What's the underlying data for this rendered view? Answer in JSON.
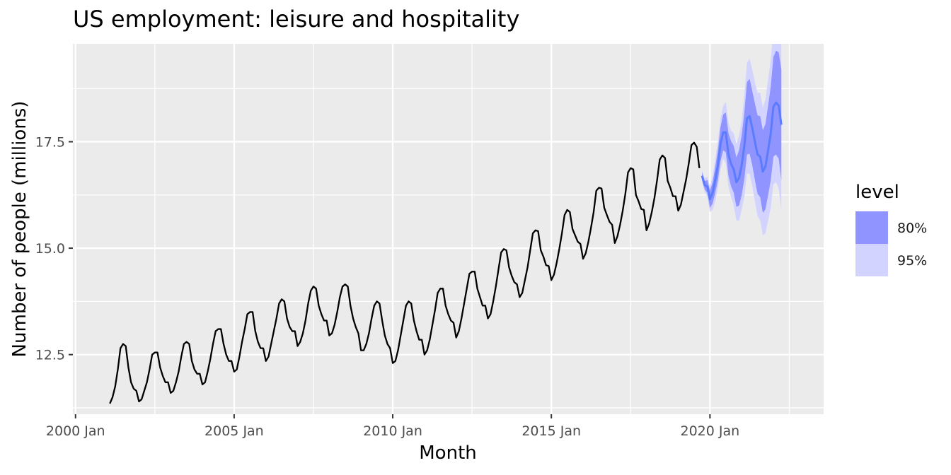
{
  "chart_data": {
    "type": "line",
    "title": "US employment: leisure and hospitality",
    "xlabel": "Month",
    "ylabel": "Number of people (millions)",
    "x_ticks": [
      "2000 Jan",
      "2005 Jan",
      "2010 Jan",
      "2015 Jan",
      "2020 Jan"
    ],
    "y_ticks": [
      "12.5",
      "15.0",
      "17.5"
    ],
    "xlim": [
      "1999-12",
      "2023-08"
    ],
    "ylim": [
      11.1,
      19.8
    ],
    "grid": true,
    "legend": {
      "title": "level",
      "position": "right",
      "entries": [
        {
          "label": "80%",
          "color": "#8f94ff"
        },
        {
          "label": "95%",
          "color": "#d3d3ff"
        }
      ]
    },
    "colors": {
      "panel": "#ebebeb",
      "grid": "#ffffff",
      "history": "#000000",
      "forecast": "#5b7cff",
      "band80": "#8f94ff",
      "band95": "#d3d3ff"
    },
    "series": [
      {
        "start": "2001-02",
        "values": [
          11.35,
          11.5,
          11.75,
          12.15,
          12.65,
          12.75,
          12.7,
          12.2,
          11.85,
          11.7,
          11.65,
          11.4,
          11.45,
          11.65,
          11.85,
          12.15,
          12.5,
          12.55,
          12.55,
          12.2,
          12.0,
          11.85,
          11.85,
          11.6,
          11.65,
          11.85,
          12.1,
          12.45,
          12.75,
          12.8,
          12.75,
          12.35,
          12.15,
          12.05,
          12.05,
          11.8,
          11.85,
          12.1,
          12.4,
          12.75,
          13.05,
          13.1,
          13.1,
          12.75,
          12.5,
          12.35,
          12.35,
          12.1,
          12.15,
          12.45,
          12.8,
          13.1,
          13.45,
          13.5,
          13.5,
          13.05,
          12.8,
          12.65,
          12.65,
          12.35,
          12.45,
          12.75,
          13.05,
          13.35,
          13.7,
          13.8,
          13.75,
          13.35,
          13.15,
          13.05,
          13.05,
          12.7,
          12.8,
          13.0,
          13.3,
          13.7,
          14.0,
          14.1,
          14.05,
          13.65,
          13.45,
          13.3,
          13.3,
          12.95,
          13.0,
          13.2,
          13.5,
          13.85,
          14.1,
          14.15,
          14.1,
          13.65,
          13.35,
          13.15,
          13.0,
          12.6,
          12.6,
          12.75,
          13.0,
          13.35,
          13.65,
          13.75,
          13.7,
          13.3,
          12.95,
          12.75,
          12.65,
          12.3,
          12.35,
          12.6,
          12.95,
          13.3,
          13.65,
          13.75,
          13.7,
          13.3,
          13.05,
          12.85,
          12.85,
          12.5,
          12.6,
          12.85,
          13.2,
          13.55,
          13.95,
          14.05,
          14.05,
          13.65,
          13.45,
          13.3,
          13.25,
          12.9,
          13.05,
          13.35,
          13.7,
          14.05,
          14.4,
          14.45,
          14.45,
          14.05,
          13.85,
          13.65,
          13.65,
          13.35,
          13.45,
          13.75,
          14.1,
          14.5,
          14.9,
          14.98,
          14.95,
          14.55,
          14.35,
          14.2,
          14.15,
          13.85,
          13.95,
          14.25,
          14.55,
          14.95,
          15.35,
          15.42,
          15.4,
          14.95,
          14.8,
          14.6,
          14.58,
          14.25,
          14.38,
          14.65,
          14.98,
          15.35,
          15.78,
          15.9,
          15.85,
          15.45,
          15.3,
          15.15,
          15.1,
          14.75,
          14.88,
          15.15,
          15.48,
          15.85,
          16.35,
          16.42,
          16.4,
          15.95,
          15.78,
          15.62,
          15.55,
          15.12,
          15.28,
          15.55,
          15.88,
          16.28,
          16.78,
          16.88,
          16.85,
          16.25,
          16.1,
          15.92,
          15.9,
          15.42,
          15.58,
          15.85,
          16.18,
          16.6,
          17.08,
          17.18,
          17.12,
          16.58,
          16.42,
          16.22,
          16.22,
          15.88,
          16.02,
          16.32,
          16.62,
          17.0,
          17.42,
          17.48,
          17.38,
          16.88
        ]
      }
    ],
    "forecast": {
      "start": "2019-10",
      "mean": [
        16.7,
        16.48,
        16.45,
        16.15,
        16.3,
        16.6,
        16.95,
        17.45,
        17.72,
        17.72,
        17.2,
        16.98,
        16.85,
        16.55,
        16.65,
        16.95,
        17.4,
        18.05,
        18.1,
        17.82,
        17.5,
        17.2,
        17.15,
        16.8,
        16.92,
        17.3,
        17.7,
        18.32,
        18.42,
        18.35,
        17.9
      ],
      "lo80": [
        16.62,
        16.38,
        16.3,
        15.95,
        16.05,
        16.3,
        16.6,
        17.05,
        17.3,
        17.25,
        16.7,
        16.45,
        16.3,
        15.97,
        16.0,
        16.25,
        16.62,
        17.2,
        17.22,
        16.95,
        16.6,
        16.28,
        16.2,
        15.83,
        15.92,
        16.25,
        16.6,
        17.15,
        17.2,
        17.1,
        16.6
      ],
      "hi80": [
        16.78,
        16.58,
        16.6,
        16.35,
        16.55,
        16.9,
        17.3,
        17.85,
        18.14,
        18.19,
        17.7,
        17.51,
        17.4,
        17.13,
        17.3,
        17.65,
        18.18,
        18.9,
        18.98,
        18.69,
        18.4,
        18.12,
        18.1,
        17.77,
        17.92,
        18.35,
        18.8,
        19.49,
        19.64,
        19.6,
        19.2
      ],
      "lo95": [
        16.57,
        16.32,
        16.22,
        15.85,
        15.9,
        16.1,
        16.4,
        16.85,
        17.1,
        17.0,
        16.45,
        16.2,
        16.0,
        15.65,
        15.65,
        15.9,
        16.2,
        16.75,
        16.75,
        16.45,
        16.1,
        15.75,
        15.65,
        15.3,
        15.35,
        15.65,
        15.95,
        16.5,
        16.55,
        16.4,
        15.9
      ],
      "hi95": [
        16.83,
        16.64,
        16.68,
        16.45,
        16.7,
        17.1,
        17.5,
        18.05,
        18.34,
        18.44,
        17.95,
        17.76,
        17.7,
        17.45,
        17.65,
        18.0,
        18.6,
        19.35,
        19.45,
        19.19,
        18.9,
        18.65,
        18.65,
        18.3,
        18.5,
        18.95,
        19.45,
        20.14,
        20.29,
        20.3,
        19.9
      ]
    }
  }
}
